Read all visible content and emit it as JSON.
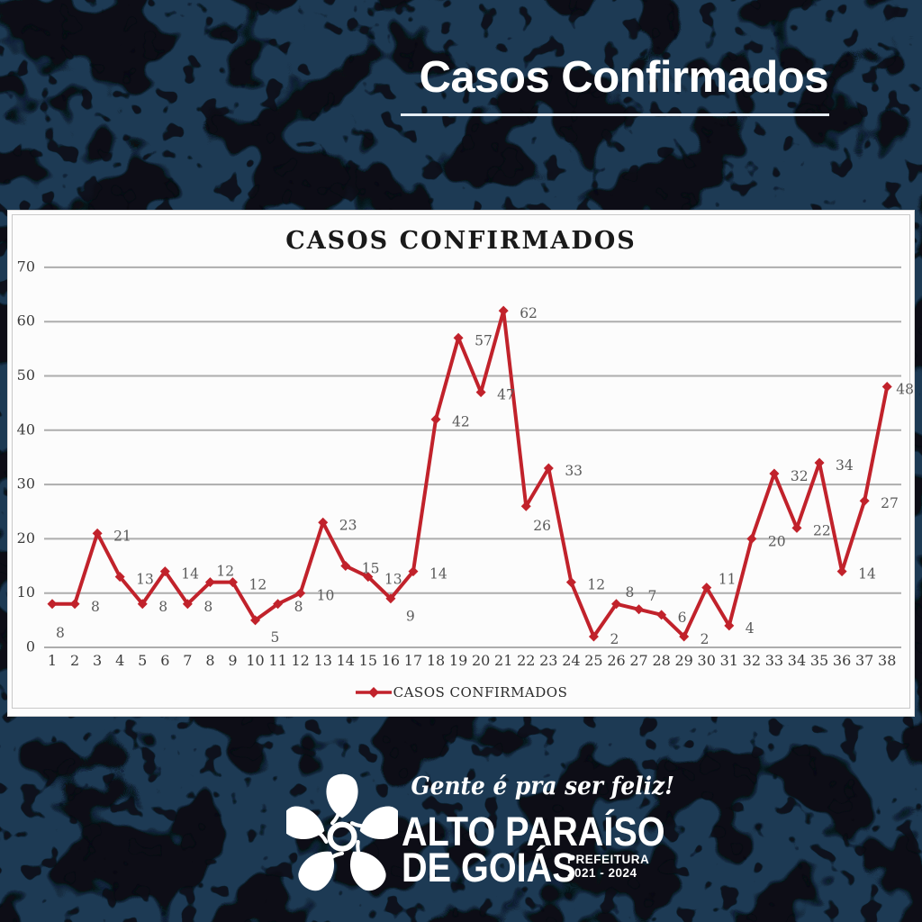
{
  "header": {
    "title": "Casos Confirmados"
  },
  "chart": {
    "title": "CASOS CONFIRMADOS",
    "legend_label": "CASOS CONFIRMADOS"
  },
  "chart_data": {
    "type": "line",
    "title": "CASOS CONFIRMADOS",
    "categories": [
      "1",
      "2",
      "3",
      "4",
      "5",
      "6",
      "7",
      "8",
      "9",
      "10",
      "11",
      "12",
      "13",
      "14",
      "15",
      "16",
      "17",
      "18",
      "19",
      "20",
      "21",
      "22",
      "23",
      "24",
      "25",
      "26",
      "27",
      "28",
      "29",
      "30",
      "31",
      "32",
      "33",
      "34",
      "35",
      "36",
      "37",
      "38"
    ],
    "series": [
      {
        "name": "CASOS CONFIRMADOS",
        "color": "#c1222b",
        "values": [
          8,
          8,
          21,
          13,
          8,
          14,
          8,
          12,
          12,
          5,
          8,
          10,
          23,
          15,
          13,
          9,
          14,
          42,
          57,
          47,
          62,
          26,
          33,
          12,
          2,
          8,
          7,
          6,
          2,
          11,
          4,
          20,
          32,
          22,
          34,
          14,
          27,
          48
        ]
      }
    ],
    "ylim": [
      0,
      70
    ],
    "ytick_step": 10,
    "grid": true,
    "data_labels": true,
    "legend_position": "bottom"
  },
  "footer": {
    "slogan": "Gente é pra ser feliz!",
    "city_line1": "ALTO PARAÍSO",
    "city_line2": "DE GOIÁS",
    "org": "PREFEITURA",
    "term": "2021 - 2024"
  },
  "colors": {
    "background": "#1d3a54",
    "blotch": "#070c12",
    "accent": "#c1222b",
    "panel": "#fcfcfc",
    "header_text": "#ffffff",
    "grid_line": "#adadad",
    "tick_label": "#3d3d3d",
    "data_label": "#5a5a5a"
  }
}
